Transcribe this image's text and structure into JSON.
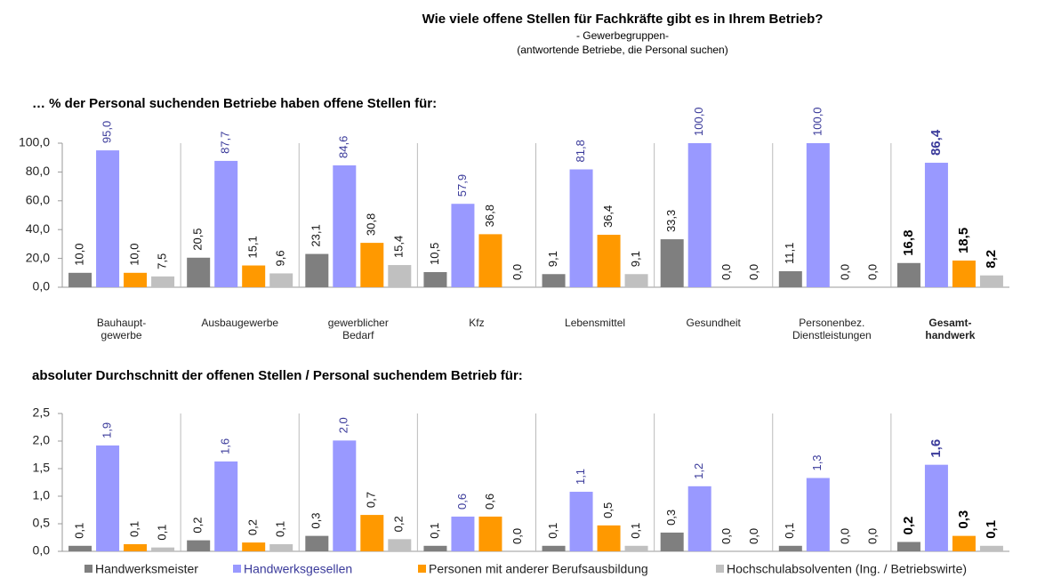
{
  "chart_data": [
    {
      "type": "bar",
      "title": "Wie viele offene Stellen für Fachkräfte gibt es in Ihrem Betrieb?",
      "subtitle": [
        "- Gewerbegruppen-",
        "(antwortende Betriebe, die Personal suchen)"
      ],
      "heading": "… % der Personal suchenden Betriebe haben offene Stellen für:",
      "categories": [
        "Bauhaupt-\ngewerbe",
        "Ausbaugewerbe",
        "gewerblicher\nBedarf",
        "Kfz",
        "Lebensmittel",
        "Gesundheit",
        "Personenbez.\nDienstleistungen",
        "Gesamt-\nhandwerk"
      ],
      "series": [
        {
          "name": "Handwerksmeister",
          "color": "#7f7f7f",
          "label_color": "#111111",
          "values": [
            10.0,
            20.5,
            23.1,
            10.5,
            9.1,
            33.3,
            11.1,
            16.8
          ],
          "value_labels": [
            "10,0",
            "20,5",
            "23,1",
            "10,5",
            "9,1",
            "33,3",
            "11,1",
            "16,8"
          ]
        },
        {
          "name": "Handwerksgesellen",
          "color": "#9999ff",
          "label_color": "#3a3a9a",
          "values": [
            95.0,
            87.7,
            84.6,
            57.9,
            81.8,
            100.0,
            100.0,
            86.4
          ],
          "value_labels": [
            "95,0",
            "87,7",
            "84,6",
            "57,9",
            "81,8",
            "100,0",
            "100,0",
            "86,4"
          ]
        },
        {
          "name": "Personen mit anderer Berufsausbildung",
          "color": "#ff9900",
          "label_color": "#111111",
          "values": [
            10.0,
            15.1,
            30.8,
            36.8,
            36.4,
            0.0,
            0.0,
            18.5
          ],
          "value_labels": [
            "10,0",
            "15,1",
            "30,8",
            "36,8",
            "36,4",
            "0,0",
            "0,0",
            "18,5"
          ]
        },
        {
          "name": "Hochschulabsolventen (Ing. / Betriebswirte)",
          "color": "#c0c0c0",
          "label_color": "#111111",
          "values": [
            7.5,
            9.6,
            15.4,
            0.0,
            9.1,
            0.0,
            0.0,
            8.2
          ],
          "value_labels": [
            "7,5",
            "9,6",
            "15,4",
            "0,0",
            "9,1",
            "0,0",
            "0,0",
            "8,2"
          ]
        }
      ],
      "ylim": [
        0,
        100
      ],
      "yticks": [
        {
          "value": 0,
          "label": "0,0"
        },
        {
          "value": 20,
          "label": "20,0"
        },
        {
          "value": 40,
          "label": "40,0"
        },
        {
          "value": 60,
          "label": "60,0"
        },
        {
          "value": 80,
          "label": "80,0"
        },
        {
          "value": 100,
          "label": "100,0"
        }
      ]
    },
    {
      "type": "bar",
      "heading": "absoluter Durchschnitt der offenen Stellen / Personal suchendem Betrieb für:",
      "series": [
        {
          "name": "Handwerksmeister",
          "color": "#7f7f7f",
          "label_color": "#111111",
          "values": [
            0.1,
            0.2,
            0.28,
            0.1,
            0.1,
            0.34,
            0.1,
            0.17
          ],
          "value_labels": [
            "0,1",
            "0,2",
            "0,3",
            "0,1",
            "0,1",
            "0,3",
            "0,1",
            "0,2"
          ]
        },
        {
          "name": "Handwerksgesellen",
          "color": "#9999ff",
          "label_color": "#3a3a9a",
          "values": [
            1.92,
            1.63,
            2.01,
            0.63,
            1.08,
            1.18,
            1.33,
            1.57
          ],
          "value_labels": [
            "1,9",
            "1,6",
            "2,0",
            "0,6",
            "1,1",
            "1,2",
            "1,3",
            "1,6"
          ]
        },
        {
          "name": "Personen mit anderer Berufsausbildung",
          "color": "#ff9900",
          "label_color": "#111111",
          "values": [
            0.13,
            0.16,
            0.66,
            0.63,
            0.47,
            0.0,
            0.0,
            0.28
          ],
          "value_labels": [
            "0,1",
            "0,2",
            "0,7",
            "0,6",
            "0,5",
            "0,0",
            "0,0",
            "0,3"
          ]
        },
        {
          "name": "Hochschulabsolventen (Ing. / Betriebswirte)",
          "color": "#c0c0c0",
          "label_color": "#111111",
          "values": [
            0.07,
            0.13,
            0.22,
            0.0,
            0.1,
            0.0,
            0.0,
            0.1
          ],
          "value_labels": [
            "0,1",
            "0,1",
            "0,2",
            "0,0",
            "0,1",
            "0,0",
            "0,0",
            "0,1"
          ]
        }
      ],
      "ylim": [
        0,
        2.5
      ],
      "yticks": [
        {
          "value": 0,
          "label": "0,0"
        },
        {
          "value": 0.5,
          "label": "0,5"
        },
        {
          "value": 1,
          "label": "1,0"
        },
        {
          "value": 1.5,
          "label": "1,5"
        },
        {
          "value": 2,
          "label": "2,0"
        },
        {
          "value": 2.5,
          "label": "2,5"
        }
      ]
    }
  ]
}
